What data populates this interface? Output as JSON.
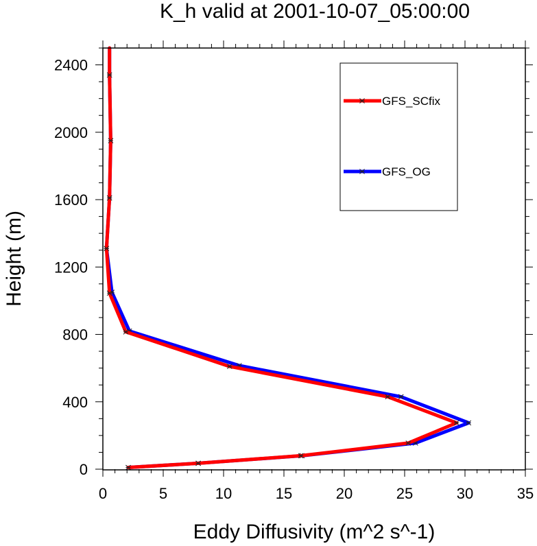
{
  "chart_data": {
    "type": "line",
    "title": "K_h valid at 2001-10-07_05:00:00",
    "xlabel": "Eddy Diffusivity (m^2 s^-1)",
    "ylabel": "Height (m)",
    "xlim": [
      0,
      35
    ],
    "ylim": [
      0,
      2500
    ],
    "x_ticks": [
      0,
      5,
      10,
      15,
      20,
      25,
      30,
      35
    ],
    "y_ticks": [
      0,
      400,
      800,
      1200,
      1600,
      2000,
      2400
    ],
    "grid": false,
    "legend_position": "top-right",
    "series": [
      {
        "name": "GFS_SCfix",
        "color": "#ff0000",
        "points": [
          [
            2.1,
            10
          ],
          [
            7.9,
            35
          ],
          [
            16.4,
            80
          ],
          [
            25.3,
            155
          ],
          [
            29.3,
            275
          ],
          [
            23.6,
            430
          ],
          [
            10.5,
            610
          ],
          [
            1.9,
            815
          ],
          [
            0.55,
            1045
          ],
          [
            0.3,
            1310
          ],
          [
            0.55,
            1610
          ],
          [
            0.65,
            1950
          ],
          [
            0.55,
            2340
          ],
          [
            0.55,
            2500
          ]
        ]
      },
      {
        "name": "GFS_OG",
        "color": "#0000ff",
        "points": [
          [
            2.1,
            10
          ],
          [
            7.9,
            35
          ],
          [
            16.5,
            80
          ],
          [
            25.9,
            155
          ],
          [
            30.3,
            275
          ],
          [
            24.7,
            430
          ],
          [
            11.3,
            615
          ],
          [
            2.2,
            820
          ],
          [
            0.75,
            1050
          ],
          [
            0.3,
            1310
          ],
          [
            0.55,
            1610
          ],
          [
            0.65,
            1950
          ],
          [
            0.55,
            2340
          ],
          [
            0.55,
            2500
          ]
        ]
      }
    ]
  }
}
